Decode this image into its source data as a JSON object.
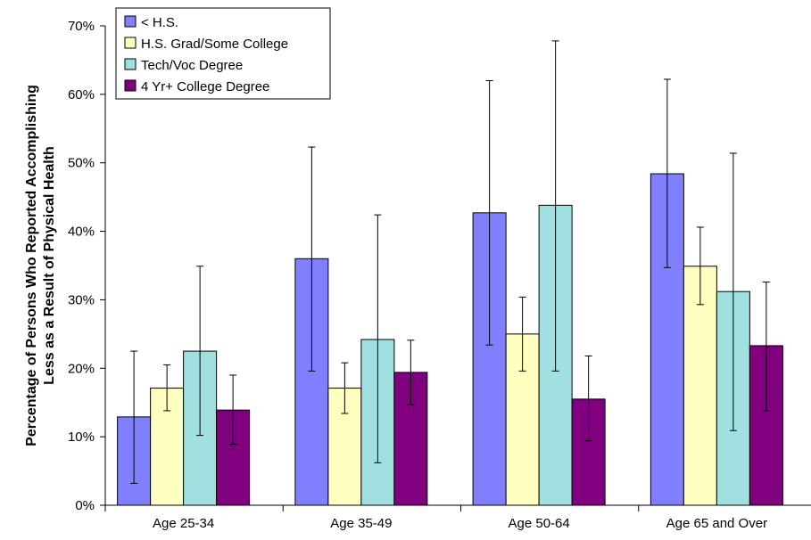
{
  "chart_data": {
    "type": "bar",
    "title": "",
    "ylabel_lines": [
      "Percentage of Persons Who Reported Accomplishing",
      "Less as a Result of Physical Health"
    ],
    "xlabel": "",
    "categories": [
      "Age 25-34",
      "Age 35-49",
      "Age 50-64",
      "Age 65 and Over"
    ],
    "ylim": [
      0,
      70
    ],
    "yticks": [
      0,
      10,
      20,
      30,
      40,
      50,
      60,
      70
    ],
    "ytick_labels": [
      "0%",
      "10%",
      "20%",
      "30%",
      "40%",
      "50%",
      "60%",
      "70%"
    ],
    "grid": false,
    "legend_position": "top-left",
    "series": [
      {
        "name": "< H.S.",
        "color": "#8080FF",
        "values": [
          12.9,
          36.0,
          42.7,
          48.4
        ],
        "error_low": [
          3.2,
          19.6,
          23.4,
          34.7
        ],
        "error_high": [
          22.5,
          52.3,
          62.0,
          62.2
        ]
      },
      {
        "name": "H.S. Grad/Some College",
        "color": "#FFFFC0",
        "values": [
          17.1,
          17.1,
          25.0,
          34.9
        ],
        "error_low": [
          13.8,
          13.4,
          19.6,
          29.3
        ],
        "error_high": [
          20.5,
          20.8,
          30.4,
          40.6
        ]
      },
      {
        "name": "Tech/Voc Degree",
        "color": "#A0E0E0",
        "values": [
          22.5,
          24.2,
          43.8,
          31.2
        ],
        "error_low": [
          10.2,
          6.2,
          19.6,
          10.9
        ],
        "error_high": [
          34.9,
          42.4,
          67.8,
          51.4
        ]
      },
      {
        "name": "4 Yr+ College Degree",
        "color": "#800080",
        "values": [
          13.9,
          19.4,
          15.5,
          23.3
        ],
        "error_low": [
          8.9,
          14.7,
          9.4,
          13.8
        ],
        "error_high": [
          19.0,
          24.1,
          21.8,
          32.6
        ]
      }
    ]
  }
}
